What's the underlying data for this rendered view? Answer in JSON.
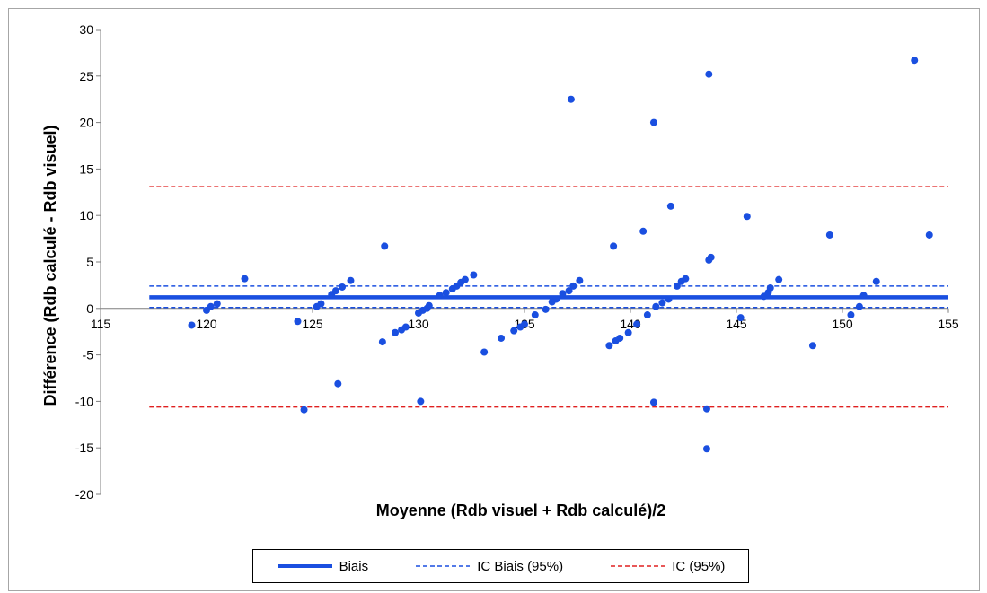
{
  "chart_data": {
    "type": "scatter",
    "xlabel": "Moyenne (Rdb visuel + Rdb calculé)/2",
    "ylabel": "Différence (Rdb calculé - Rdb visuel)",
    "xlim": [
      115,
      155
    ],
    "ylim": [
      -20,
      30
    ],
    "x_ticks": [
      "115",
      "120",
      "125",
      "130",
      "135",
      "140",
      "145",
      "150",
      "155"
    ],
    "y_ticks": [
      "30",
      "25",
      "20",
      "15",
      "10",
      "5",
      "0",
      "-5",
      "-10",
      "-15",
      "-20"
    ],
    "grid": false,
    "legend_position": "bottom",
    "point_color": "#1a4fe0",
    "points": [
      [
        119.3,
        -1.8
      ],
      [
        120.0,
        -0.2
      ],
      [
        120.2,
        0.2
      ],
      [
        120.5,
        0.5
      ],
      [
        121.8,
        3.2
      ],
      [
        124.3,
        -1.4
      ],
      [
        124.6,
        -10.9
      ],
      [
        125.2,
        0.2
      ],
      [
        125.4,
        0.5
      ],
      [
        125.9,
        1.5
      ],
      [
        126.1,
        1.9
      ],
      [
        126.2,
        -8.1
      ],
      [
        126.4,
        2.3
      ],
      [
        126.8,
        3.0
      ],
      [
        128.3,
        -3.6
      ],
      [
        128.4,
        6.7
      ],
      [
        128.9,
        -2.6
      ],
      [
        129.2,
        -2.3
      ],
      [
        129.4,
        -2.0
      ],
      [
        130.0,
        -0.5
      ],
      [
        130.1,
        -10.0
      ],
      [
        130.2,
        -0.2
      ],
      [
        130.4,
        0.0
      ],
      [
        130.5,
        0.3
      ],
      [
        131.0,
        1.4
      ],
      [
        131.3,
        1.7
      ],
      [
        131.6,
        2.1
      ],
      [
        131.8,
        2.4
      ],
      [
        132.0,
        2.8
      ],
      [
        132.2,
        3.1
      ],
      [
        132.6,
        3.6
      ],
      [
        133.1,
        -4.7
      ],
      [
        133.9,
        -3.2
      ],
      [
        134.5,
        -2.4
      ],
      [
        134.8,
        -2.0
      ],
      [
        135.0,
        -1.7
      ],
      [
        135.5,
        -0.7
      ],
      [
        136.0,
        -0.1
      ],
      [
        136.3,
        0.7
      ],
      [
        136.5,
        1.0
      ],
      [
        136.8,
        1.6
      ],
      [
        137.1,
        1.9
      ],
      [
        137.3,
        2.4
      ],
      [
        137.2,
        22.5
      ],
      [
        137.6,
        3.0
      ],
      [
        139.0,
        -4.0
      ],
      [
        139.3,
        -3.5
      ],
      [
        139.5,
        -3.2
      ],
      [
        139.9,
        -2.6
      ],
      [
        140.3,
        -1.7
      ],
      [
        140.6,
        8.3
      ],
      [
        139.2,
        6.7
      ],
      [
        140.8,
        -0.7
      ],
      [
        141.1,
        -10.1
      ],
      [
        141.1,
        20.0
      ],
      [
        141.2,
        0.2
      ],
      [
        141.5,
        0.6
      ],
      [
        141.8,
        1.0
      ],
      [
        141.9,
        11.0
      ],
      [
        142.2,
        2.4
      ],
      [
        142.4,
        2.9
      ],
      [
        142.6,
        3.2
      ],
      [
        143.6,
        -15.1
      ],
      [
        143.6,
        -10.8
      ],
      [
        143.7,
        25.2
      ],
      [
        143.7,
        5.2
      ],
      [
        143.8,
        5.5
      ],
      [
        145.2,
        -1.0
      ],
      [
        145.5,
        9.9
      ],
      [
        146.3,
        1.3
      ],
      [
        146.5,
        1.7
      ],
      [
        146.6,
        2.2
      ],
      [
        147.0,
        3.1
      ],
      [
        148.6,
        -4.0
      ],
      [
        149.4,
        7.9
      ],
      [
        150.4,
        -0.7
      ],
      [
        150.8,
        0.2
      ],
      [
        151.0,
        1.4
      ],
      [
        151.6,
        2.9
      ],
      [
        153.4,
        26.7
      ],
      [
        154.1,
        7.9
      ]
    ],
    "lines": [
      {
        "name": "Biais",
        "y": 1.2,
        "style": "solid",
        "color": "#1a4fe0"
      },
      {
        "name": "IC Biais (95%)",
        "y": 2.4,
        "style": "dashed",
        "color": "#1a4fe0"
      },
      {
        "name": "IC Biais (95%)",
        "y": 0.1,
        "style": "dashed",
        "color": "#1a4fe0"
      },
      {
        "name": "IC (95%)",
        "y": 13.1,
        "style": "dashed",
        "color": "#e02020"
      },
      {
        "name": "IC (95%)",
        "y": -10.6,
        "style": "dashed",
        "color": "#e02020"
      }
    ]
  },
  "legend": {
    "biais": "Biais",
    "ic_biais": "IC Biais (95%)",
    "ic": "IC (95%)"
  }
}
